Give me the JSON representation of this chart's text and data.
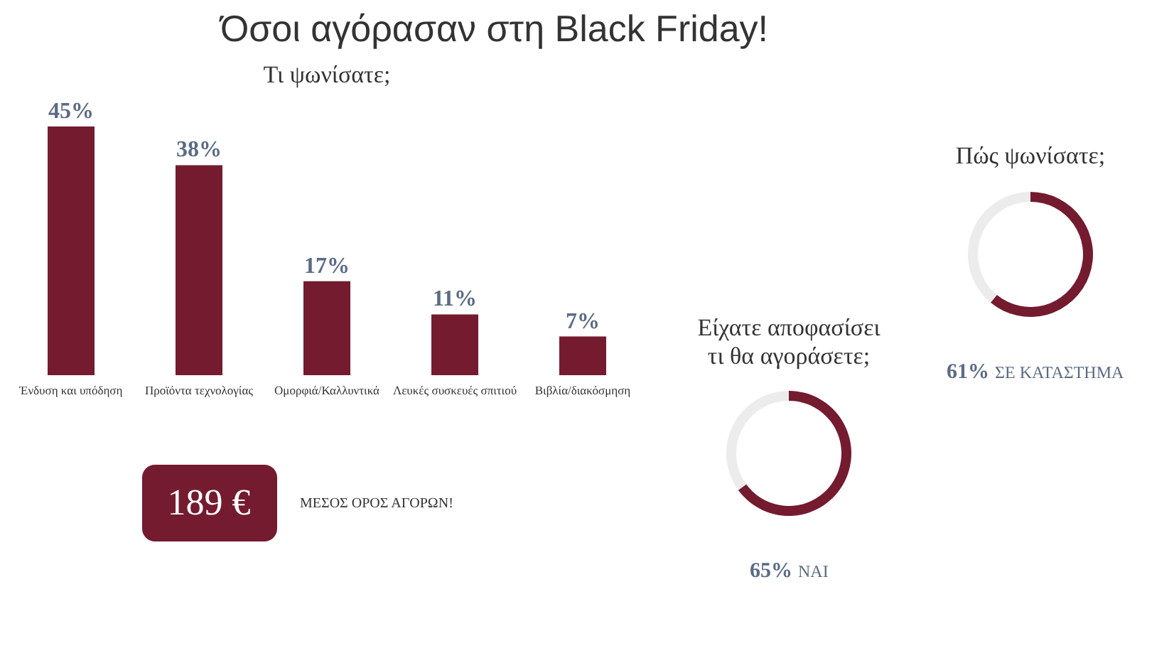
{
  "chart_data": [
    {
      "type": "other",
      "title": "Όσοι αγόρασαν στη Black Friday!"
    },
    {
      "type": "bar",
      "title": "Τι ψωνίσατε;",
      "categories": [
        "Ένδυση και υπόδηση",
        "Προϊόντα τεχνολογίας",
        "Ομορφιά/Καλλυντικά",
        "Λευκές συσκευές σπιτιού",
        "Βιβλία/διακόσμηση"
      ],
      "values": [
        45,
        38,
        17,
        11,
        7
      ],
      "value_labels": [
        "45%",
        "38%",
        "17%",
        "11%",
        "7%"
      ],
      "color": "#741b2f",
      "grid": false
    },
    {
      "type": "donut",
      "title": "Πώς ψωνίσατε;",
      "categories": [
        "ΣΕ ΚΑΤΑΣΤΗΜΑ",
        null
      ],
      "values": [
        61,
        39
      ],
      "colors": [
        "#741b2f",
        "#ececec"
      ],
      "value_labels": [
        "61%",
        null
      ],
      "legend": false
    },
    {
      "type": "donut",
      "title": "Είχατε αποφασίσει\nτι θα αγοράσετε;",
      "categories": [
        "ΝΑΙ",
        null
      ],
      "values": [
        65,
        35
      ],
      "colors": [
        "#741b2f",
        "#ececec"
      ],
      "value_labels": [
        "65%",
        null
      ],
      "legend": false
    },
    {
      "type": "other",
      "annotations": [
        "189 €",
        "ΜΕΣΟΣ ΟΡΟΣ ΑΓΟΡΩΝ!"
      ]
    }
  ]
}
